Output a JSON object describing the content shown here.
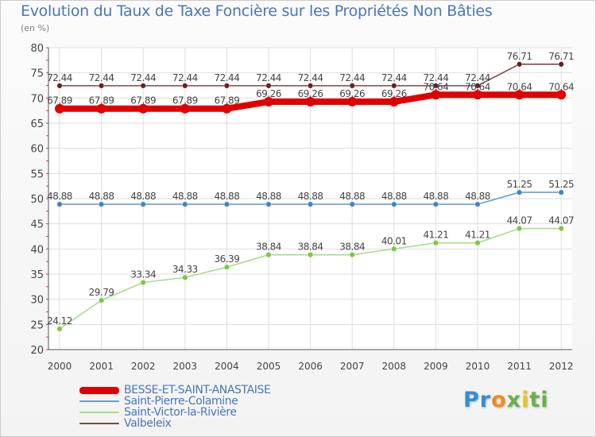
{
  "title": "Evolution du Taux de Taxe Foncière sur les Propriétés Non Bâties",
  "subtitle": "(en %)",
  "logo": {
    "p1": "Pr",
    "p2": "o",
    "p3": "x",
    "p4": "i",
    "p5": "ti"
  },
  "colors": {
    "frame_border": "#cccccc",
    "title": "#4b76b8",
    "besse": "#e00000",
    "saint_pierre": "#6a9fd0",
    "saint_victor": "#a9dc8c",
    "valbeleix": "#7a4848"
  },
  "chart_data": {
    "type": "line",
    "title": "Evolution du Taux de Taxe Foncière sur les Propriétés Non Bâties",
    "ylabel": "(en %)",
    "xlabel": "",
    "x": [
      "2000",
      "2001",
      "2002",
      "2003",
      "2004",
      "2005",
      "2006",
      "2007",
      "2008",
      "2009",
      "2010",
      "2011",
      "2012"
    ],
    "ylim": [
      20,
      80
    ],
    "yticks": [
      20,
      25,
      30,
      35,
      40,
      45,
      50,
      55,
      60,
      65,
      70,
      75,
      80
    ],
    "grid": true,
    "legend_position": "bottom-left",
    "series": [
      {
        "name": "BESSE-ET-SAINT-ANASTAISE",
        "color": "#e00000",
        "style": "thick",
        "values": [
          67.89,
          67.89,
          67.89,
          67.89,
          67.89,
          69.26,
          69.26,
          69.26,
          69.26,
          70.64,
          70.64,
          70.64,
          70.64
        ],
        "labels": [
          "67.89",
          "67.89",
          "67.89",
          "67.89",
          "67.89",
          "69.26",
          "69.26",
          "69.26",
          "69.26",
          "70.64",
          "70.64",
          "70.64",
          "70.64"
        ]
      },
      {
        "name": "Saint-Pierre-Colamine",
        "color": "#6a9fd0",
        "marker": "#3f86c9",
        "values": [
          48.88,
          48.88,
          48.88,
          48.88,
          48.88,
          48.88,
          48.88,
          48.88,
          48.88,
          48.88,
          48.88,
          51.25,
          51.25
        ],
        "labels": [
          "48.88",
          "48.88",
          "48.88",
          "48.88",
          "48.88",
          "48.88",
          "48.88",
          "48.88",
          "48.88",
          "48.88",
          "48.88",
          "51.25",
          "51.25"
        ]
      },
      {
        "name": "Saint-Victor-la-Rivière",
        "color": "#a9dc8c",
        "marker": "#7ac943",
        "values": [
          24.12,
          29.79,
          33.34,
          34.33,
          36.39,
          38.84,
          38.84,
          38.84,
          40.01,
          41.21,
          41.21,
          44.07,
          44.07
        ],
        "labels": [
          "24.12",
          "29.79",
          "33.34",
          "34.33",
          "36.39",
          "38.84",
          "38.84",
          "38.84",
          "40.01",
          "41.21",
          "41.21",
          "44.07",
          "44.07"
        ]
      },
      {
        "name": "Valbeleix",
        "color": "#7a4848",
        "marker": "#6b1f1f",
        "values": [
          72.44,
          72.44,
          72.44,
          72.44,
          72.44,
          72.44,
          72.44,
          72.44,
          72.44,
          72.44,
          72.44,
          76.71,
          76.71
        ],
        "labels": [
          "72.44",
          "72.44",
          "72.44",
          "72.44",
          "72.44",
          "72.44",
          "72.44",
          "72.44",
          "72.44",
          "72.44",
          "72.44",
          "76.71",
          "76.71"
        ]
      }
    ]
  }
}
